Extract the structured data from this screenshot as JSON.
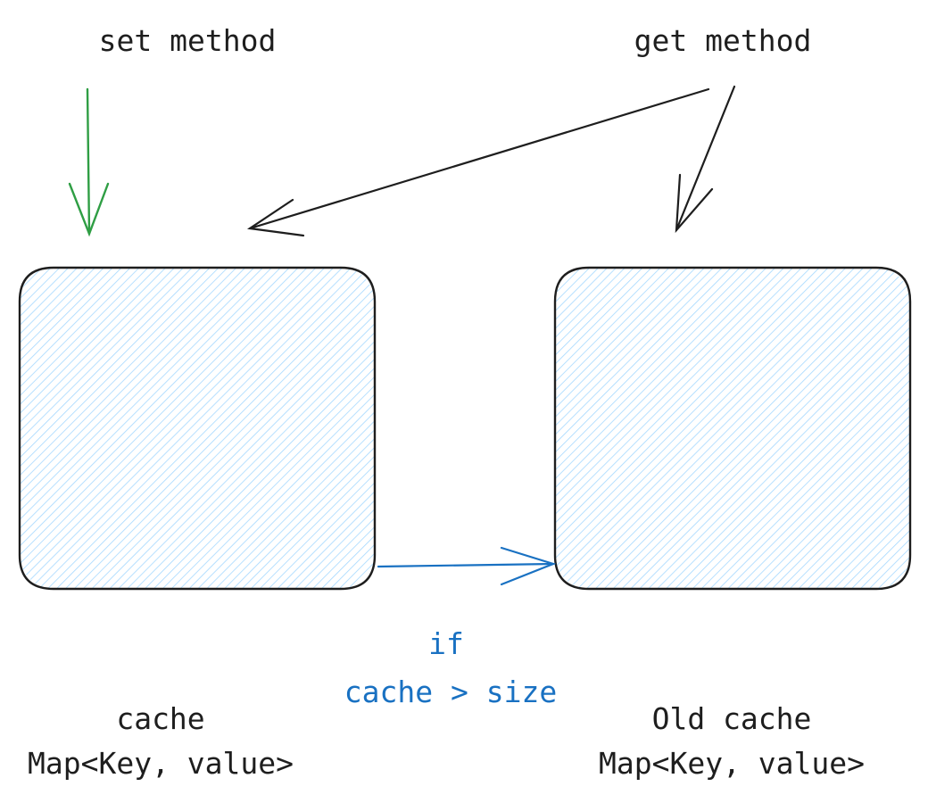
{
  "labels": {
    "set_method": "set method",
    "get_method": "get method",
    "condition_if": "if",
    "condition_expr": "cache > size",
    "cache_name": "cache",
    "cache_type": "Map<Key, value>",
    "old_cache_name": "Old cache",
    "old_cache_type": "Map<Key, value>"
  },
  "colors": {
    "stroke": "#1e1e1e",
    "set_arrow": "#2f9e44",
    "transfer_arrow": "#1971c2",
    "box_hatch": "#a5d8ff"
  }
}
